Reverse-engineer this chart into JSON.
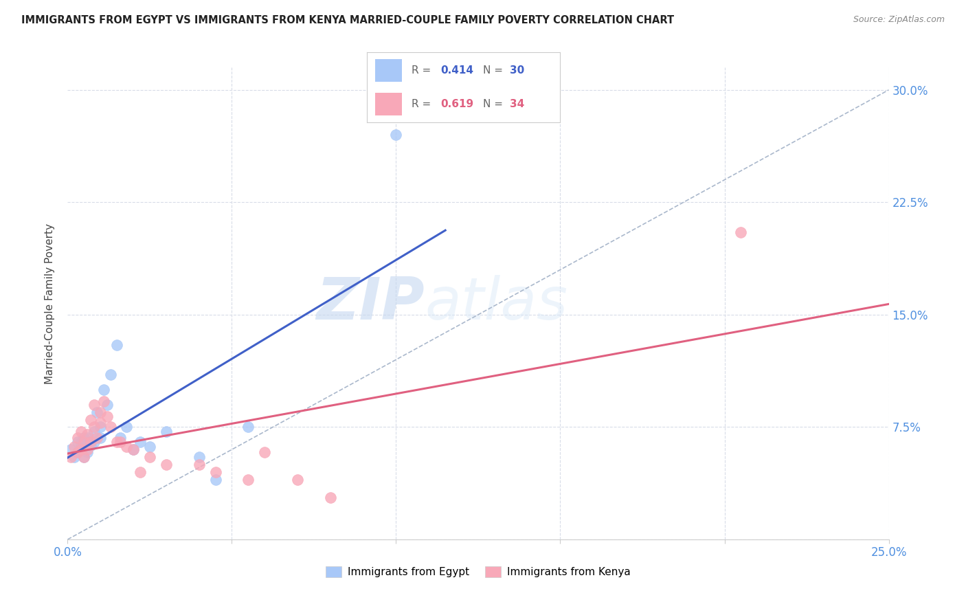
{
  "title": "IMMIGRANTS FROM EGYPT VS IMMIGRANTS FROM KENYA MARRIED-COUPLE FAMILY POVERTY CORRELATION CHART",
  "source": "Source: ZipAtlas.com",
  "ylabel": "Married-Couple Family Poverty",
  "xlim": [
    0.0,
    0.25
  ],
  "ylim": [
    0.0,
    0.315
  ],
  "xticks": [
    0.0,
    0.05,
    0.1,
    0.15,
    0.2,
    0.25
  ],
  "yticks_right": [
    0.0,
    0.075,
    0.15,
    0.225,
    0.3
  ],
  "ytick_labels_right": [
    "",
    "7.5%",
    "15.0%",
    "22.5%",
    "30.0%"
  ],
  "xtick_labels": [
    "0.0%",
    "",
    "",
    "",
    "",
    "25.0%"
  ],
  "egypt_R": 0.414,
  "egypt_N": 30,
  "kenya_R": 0.619,
  "kenya_N": 34,
  "egypt_color": "#a8c8f8",
  "kenya_color": "#f8a8b8",
  "egypt_line_color": "#4060c8",
  "kenya_line_color": "#e06080",
  "ref_line_color": "#aab8cc",
  "egypt_scatter_x": [
    0.001,
    0.002,
    0.003,
    0.003,
    0.004,
    0.004,
    0.005,
    0.005,
    0.006,
    0.006,
    0.007,
    0.008,
    0.008,
    0.009,
    0.01,
    0.01,
    0.011,
    0.012,
    0.013,
    0.015,
    0.016,
    0.018,
    0.02,
    0.022,
    0.025,
    0.03,
    0.04,
    0.045,
    0.1,
    0.055
  ],
  "egypt_scatter_y": [
    0.06,
    0.055,
    0.058,
    0.065,
    0.062,
    0.065,
    0.055,
    0.068,
    0.058,
    0.068,
    0.063,
    0.072,
    0.065,
    0.085,
    0.068,
    0.075,
    0.1,
    0.09,
    0.11,
    0.13,
    0.068,
    0.075,
    0.06,
    0.065,
    0.062,
    0.072,
    0.055,
    0.04,
    0.27,
    0.075
  ],
  "kenya_scatter_x": [
    0.001,
    0.002,
    0.003,
    0.003,
    0.004,
    0.004,
    0.005,
    0.005,
    0.006,
    0.006,
    0.007,
    0.007,
    0.008,
    0.008,
    0.009,
    0.01,
    0.01,
    0.011,
    0.012,
    0.013,
    0.015,
    0.016,
    0.018,
    0.02,
    0.022,
    0.025,
    0.03,
    0.04,
    0.045,
    0.055,
    0.06,
    0.07,
    0.08,
    0.205
  ],
  "kenya_scatter_y": [
    0.055,
    0.062,
    0.058,
    0.068,
    0.06,
    0.072,
    0.055,
    0.065,
    0.06,
    0.07,
    0.065,
    0.08,
    0.075,
    0.09,
    0.068,
    0.078,
    0.085,
    0.092,
    0.082,
    0.075,
    0.065,
    0.065,
    0.062,
    0.06,
    0.045,
    0.055,
    0.05,
    0.05,
    0.045,
    0.04,
    0.058,
    0.04,
    0.028,
    0.205
  ],
  "watermark_zip": "ZIP",
  "watermark_atlas": "atlas",
  "background_color": "#ffffff",
  "grid_color": "#d8dce8"
}
